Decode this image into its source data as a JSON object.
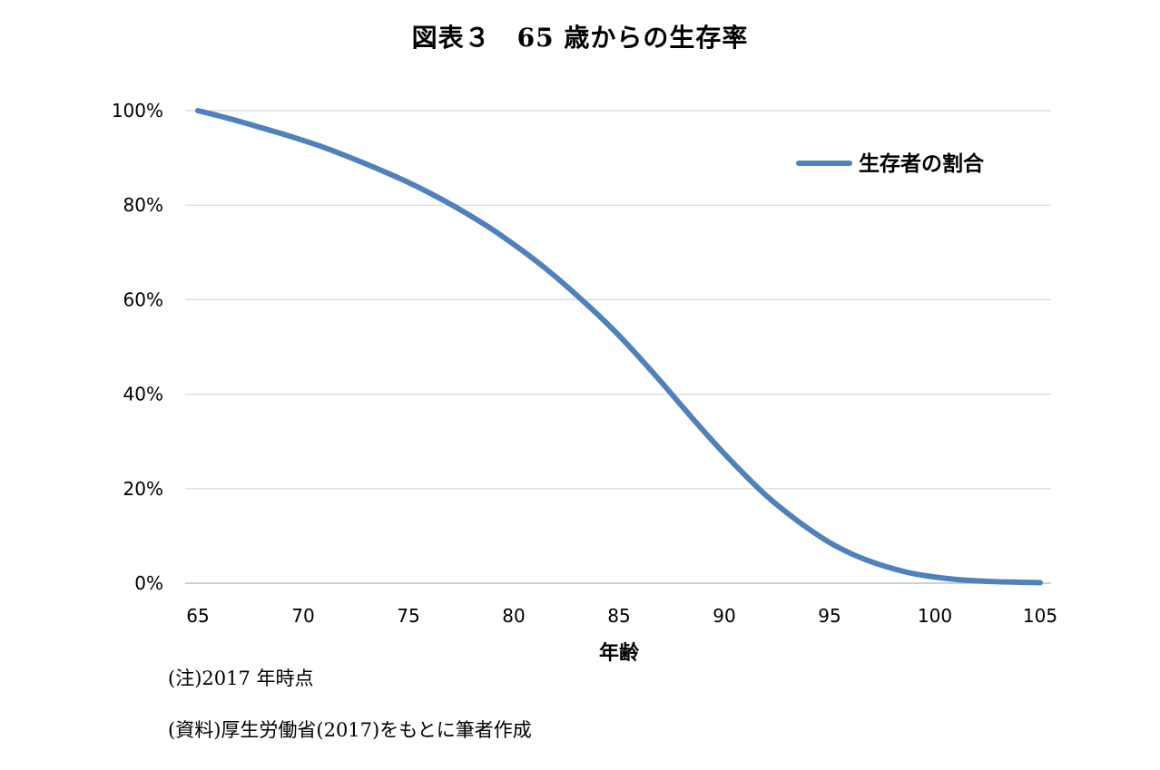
{
  "chart_data": {
    "type": "line",
    "title": "図表３　65 歳からの生存率",
    "xlabel": "年齢",
    "ylabel": "",
    "x": [
      65,
      66,
      67,
      68,
      69,
      70,
      71,
      72,
      73,
      74,
      75,
      76,
      77,
      78,
      79,
      80,
      81,
      82,
      83,
      84,
      85,
      86,
      87,
      88,
      89,
      90,
      91,
      92,
      93,
      94,
      95,
      96,
      97,
      98,
      99,
      100,
      101,
      102,
      103,
      104,
      105
    ],
    "series": [
      {
        "name": "生存者の割合",
        "color": "#4f81bd",
        "values": [
          100,
          98.9,
          97.7,
          96.4,
          95.1,
          93.7,
          92.2,
          90.5,
          88.7,
          86.8,
          84.8,
          82.6,
          80.2,
          77.6,
          74.8,
          71.7,
          68.4,
          64.8,
          60.9,
          56.8,
          52.4,
          47.6,
          42.6,
          37.4,
          32.3,
          27.4,
          22.8,
          18.5,
          14.8,
          11.5,
          8.6,
          6.3,
          4.5,
          3.1,
          2.0,
          1.3,
          0.8,
          0.5,
          0.3,
          0.2,
          0.1
        ]
      }
    ],
    "xlim": [
      65,
      105
    ],
    "ylim": [
      0,
      100
    ],
    "xticks": [
      "65",
      "70",
      "75",
      "80",
      "85",
      "90",
      "95",
      "100",
      "105"
    ],
    "yticks": [
      "0%",
      "20%",
      "40%",
      "60%",
      "80%",
      "100%"
    ],
    "grid": true,
    "legend_position": "top-right"
  },
  "notes": {
    "note1": "(注)2017 年時点",
    "note2": "(資料)厚生労働省(2017)をもとに筆者作成"
  }
}
